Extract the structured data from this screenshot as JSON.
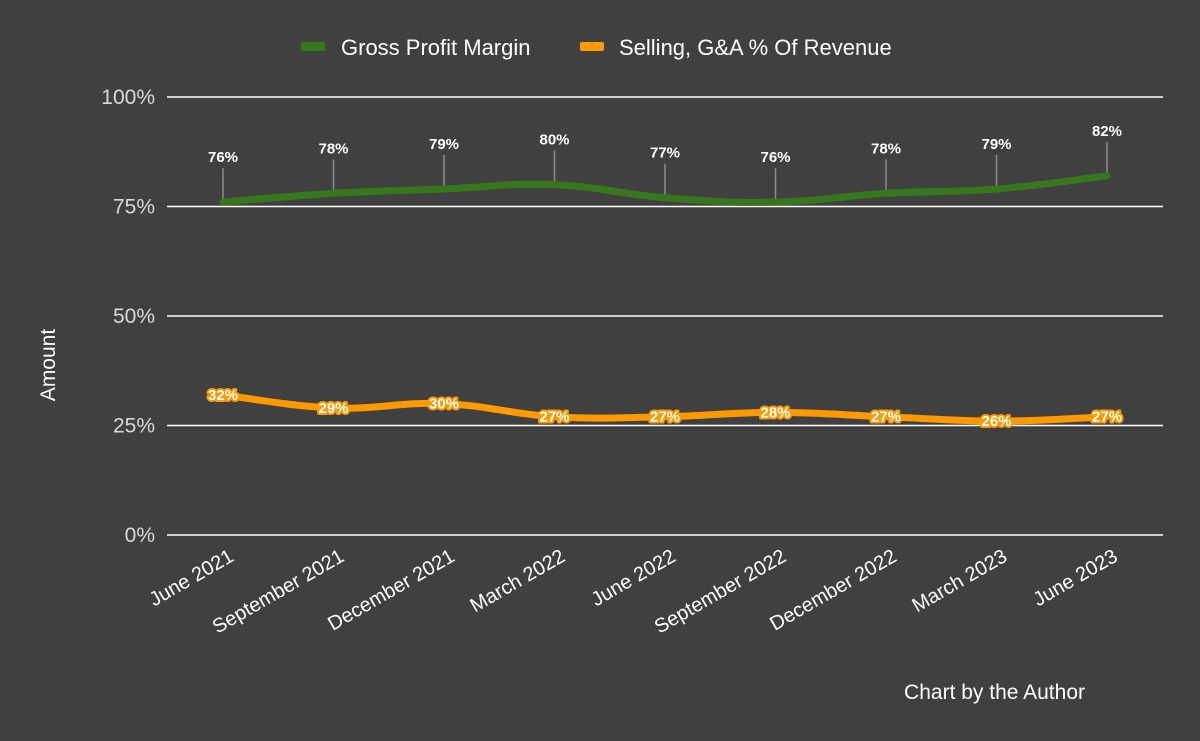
{
  "chart_data": {
    "type": "line",
    "categories": [
      "June 2021",
      "September 2021",
      "December 2021",
      "March 2022",
      "June 2022",
      "September 2022",
      "December 2022",
      "March 2023",
      "June 2023"
    ],
    "series": [
      {
        "name": "Gross Profit Margin",
        "color": "#38761d",
        "values": [
          76,
          78,
          79,
          80,
          77,
          76,
          78,
          79,
          82
        ],
        "labels": [
          "76%",
          "78%",
          "79%",
          "80%",
          "77%",
          "76%",
          "78%",
          "79%",
          "82%"
        ]
      },
      {
        "name": "Selling, G&A % Of Revenue",
        "color": "#ff9900",
        "values": [
          32,
          29,
          30,
          27,
          27,
          28,
          27,
          26,
          27
        ],
        "labels": [
          "32%",
          "29%",
          "30%",
          "27%",
          "27%",
          "28%",
          "27%",
          "26%",
          "27%"
        ]
      }
    ],
    "yticks": [
      "0%",
      "25%",
      "50%",
      "75%",
      "100%"
    ],
    "ylim": [
      0,
      100
    ],
    "xlabel": "",
    "ylabel": "Amount",
    "grid": true,
    "legend_position": "top",
    "footnote": "Chart by the Author"
  }
}
